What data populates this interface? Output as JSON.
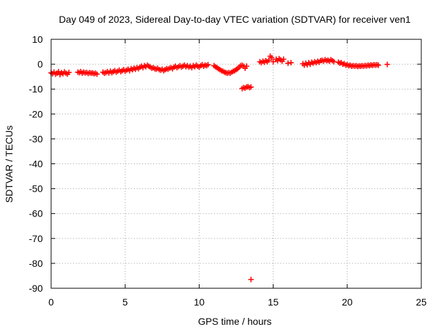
{
  "chart_data": {
    "type": "scatter",
    "title": "Day 049 of 2023, Sidereal Day-to-day VTEC variation (SDTVAR) for receiver ven1",
    "xlabel": "GPS time / hours",
    "ylabel": "SDTVAR / TECUs",
    "xlim": [
      0,
      25
    ],
    "ylim": [
      -90,
      10
    ],
    "xticks": [
      "0",
      "5",
      "10",
      "15",
      "20",
      "25"
    ],
    "yticks": [
      "10",
      "0",
      "-10",
      "-20",
      "-30",
      "-40",
      "-50",
      "-60",
      "-70",
      "-80",
      "-90"
    ],
    "grid": true,
    "marker": "plus",
    "color": "#ff0000",
    "series": [
      {
        "points": [
          [
            0.0,
            -3.5
          ],
          [
            0.1,
            -3.8
          ],
          [
            0.2,
            -3.2
          ],
          [
            0.3,
            -4.0
          ],
          [
            0.4,
            -3.6
          ],
          [
            0.5,
            -3.0
          ],
          [
            0.6,
            -4.2
          ],
          [
            0.7,
            -3.4
          ],
          [
            0.8,
            -3.8
          ],
          [
            0.9,
            -3.1
          ],
          [
            1.0,
            -3.6
          ],
          [
            1.1,
            -4.0
          ],
          [
            1.2,
            -3.3
          ],
          [
            1.8,
            -3.2
          ],
          [
            1.9,
            -3.4
          ],
          [
            2.0,
            -3.0
          ],
          [
            2.1,
            -3.6
          ],
          [
            2.2,
            -3.2
          ],
          [
            2.3,
            -3.5
          ],
          [
            2.4,
            -3.3
          ],
          [
            2.5,
            -3.7
          ],
          [
            2.6,
            -3.4
          ],
          [
            2.7,
            -3.6
          ],
          [
            2.8,
            -3.5
          ],
          [
            2.9,
            -3.8
          ],
          [
            3.0,
            -3.6
          ],
          [
            3.1,
            -4.0
          ],
          [
            3.5,
            -3.2
          ],
          [
            3.6,
            -3.6
          ],
          [
            3.7,
            -3.4
          ],
          [
            3.8,
            -3.0
          ],
          [
            3.9,
            -3.5
          ],
          [
            4.0,
            -2.8
          ],
          [
            4.1,
            -3.4
          ],
          [
            4.2,
            -3.0
          ],
          [
            4.3,
            -2.6
          ],
          [
            4.4,
            -3.2
          ],
          [
            4.5,
            -2.8
          ],
          [
            4.6,
            -2.4
          ],
          [
            4.7,
            -3.0
          ],
          [
            4.8,
            -2.6
          ],
          [
            4.9,
            -2.2
          ],
          [
            5.0,
            -2.8
          ],
          [
            5.1,
            -2.4
          ],
          [
            5.2,
            -2.0
          ],
          [
            5.3,
            -2.6
          ],
          [
            5.4,
            -1.8
          ],
          [
            5.5,
            -2.2
          ],
          [
            5.6,
            -1.6
          ],
          [
            5.7,
            -2.0
          ],
          [
            5.8,
            -1.4
          ],
          [
            5.9,
            -1.8
          ],
          [
            6.0,
            -1.2
          ],
          [
            6.1,
            -0.8
          ],
          [
            6.2,
            -1.4
          ],
          [
            6.3,
            -0.6
          ],
          [
            6.4,
            -1.0
          ],
          [
            6.5,
            -0.4
          ],
          [
            6.6,
            -0.8
          ],
          [
            6.7,
            -1.2
          ],
          [
            6.8,
            -1.6
          ],
          [
            6.9,
            -1.4
          ],
          [
            7.0,
            -1.8
          ],
          [
            7.1,
            -2.0
          ],
          [
            7.2,
            -1.6
          ],
          [
            7.3,
            -2.2
          ],
          [
            7.4,
            -2.4
          ],
          [
            7.5,
            -2.0
          ],
          [
            7.6,
            -2.6
          ],
          [
            7.7,
            -2.2
          ],
          [
            7.8,
            -1.8
          ],
          [
            7.9,
            -2.0
          ],
          [
            8.0,
            -1.6
          ],
          [
            8.1,
            -1.4
          ],
          [
            8.2,
            -1.8
          ],
          [
            8.3,
            -1.2
          ],
          [
            8.4,
            -0.8
          ],
          [
            8.5,
            -1.4
          ],
          [
            8.6,
            -1.0
          ],
          [
            8.7,
            -0.6
          ],
          [
            8.8,
            -1.2
          ],
          [
            8.9,
            -0.8
          ],
          [
            9.0,
            -0.4
          ],
          [
            9.1,
            -1.0
          ],
          [
            9.2,
            -0.6
          ],
          [
            9.3,
            -1.2
          ],
          [
            9.4,
            -0.8
          ],
          [
            9.5,
            -1.4
          ],
          [
            9.6,
            -0.6
          ],
          [
            9.7,
            -1.0
          ],
          [
            9.8,
            -0.4
          ],
          [
            9.9,
            -0.8
          ],
          [
            10.0,
            -1.2
          ],
          [
            10.1,
            -0.6
          ],
          [
            10.2,
            -0.2
          ],
          [
            10.3,
            -0.8
          ],
          [
            10.4,
            -0.4
          ],
          [
            10.5,
            -0.6
          ],
          [
            10.6,
            -0.2
          ],
          [
            11.0,
            -0.6
          ],
          [
            11.1,
            -1.0
          ],
          [
            11.2,
            -1.4
          ],
          [
            11.3,
            -1.8
          ],
          [
            11.4,
            -2.2
          ],
          [
            11.5,
            -2.6
          ],
          [
            11.6,
            -2.8
          ],
          [
            11.7,
            -3.2
          ],
          [
            11.8,
            -3.4
          ],
          [
            11.9,
            -3.6
          ],
          [
            12.0,
            -3.4
          ],
          [
            12.1,
            -3.6
          ],
          [
            12.2,
            -3.2
          ],
          [
            12.3,
            -2.8
          ],
          [
            12.4,
            -2.6
          ],
          [
            12.5,
            -2.2
          ],
          [
            12.6,
            -1.8
          ],
          [
            12.7,
            -1.2
          ],
          [
            12.8,
            -0.6
          ],
          [
            12.9,
            -0.4
          ],
          [
            13.0,
            -0.8
          ],
          [
            13.1,
            -1.6
          ],
          [
            13.2,
            -0.8
          ],
          [
            12.9,
            -9.8
          ],
          [
            13.0,
            -9.4
          ],
          [
            13.1,
            -9.6
          ],
          [
            13.2,
            -9.2
          ],
          [
            13.3,
            -9.0
          ],
          [
            13.4,
            -9.4
          ],
          [
            13.5,
            -9.2
          ],
          [
            13.5,
            -86.5
          ],
          [
            14.1,
            1.0
          ],
          [
            14.2,
            0.6
          ],
          [
            14.3,
            1.2
          ],
          [
            14.4,
            0.8
          ],
          [
            14.5,
            1.4
          ],
          [
            14.6,
            1.0
          ],
          [
            14.7,
            1.6
          ],
          [
            14.8,
            3.2
          ],
          [
            14.9,
            2.6
          ],
          [
            15.0,
            1.0
          ],
          [
            15.2,
            2.0
          ],
          [
            15.3,
            1.4
          ],
          [
            15.4,
            2.2
          ],
          [
            15.5,
            1.8
          ],
          [
            15.6,
            1.2
          ],
          [
            15.7,
            2.0
          ],
          [
            16.0,
            0.4
          ],
          [
            16.2,
            0.6
          ],
          [
            17.0,
            0.2
          ],
          [
            17.1,
            -0.4
          ],
          [
            17.2,
            0.4
          ],
          [
            17.3,
            -0.2
          ],
          [
            17.4,
            0.6
          ],
          [
            17.5,
            0.0
          ],
          [
            17.6,
            0.8
          ],
          [
            17.7,
            0.4
          ],
          [
            17.8,
            1.0
          ],
          [
            17.9,
            0.6
          ],
          [
            18.0,
            1.2
          ],
          [
            18.1,
            0.8
          ],
          [
            18.2,
            1.4
          ],
          [
            18.3,
            1.6
          ],
          [
            18.4,
            1.2
          ],
          [
            18.5,
            1.8
          ],
          [
            18.6,
            1.4
          ],
          [
            18.7,
            1.6
          ],
          [
            18.8,
            1.2
          ],
          [
            18.9,
            1.8
          ],
          [
            19.0,
            1.4
          ],
          [
            19.1,
            1.0
          ],
          [
            19.4,
            0.8
          ],
          [
            19.5,
            0.4
          ],
          [
            19.6,
            0.6
          ],
          [
            19.7,
            0.0
          ],
          [
            19.8,
            0.2
          ],
          [
            19.9,
            -0.4
          ],
          [
            20.0,
            -0.2
          ],
          [
            20.1,
            -0.6
          ],
          [
            20.2,
            -0.4
          ],
          [
            20.3,
            -0.8
          ],
          [
            20.4,
            -0.6
          ],
          [
            20.5,
            -0.8
          ],
          [
            20.6,
            -0.6
          ],
          [
            20.7,
            -0.9
          ],
          [
            20.8,
            -0.7
          ],
          [
            20.9,
            -0.8
          ],
          [
            21.0,
            -0.6
          ],
          [
            21.1,
            -0.8
          ],
          [
            21.2,
            -0.5
          ],
          [
            21.3,
            -0.7
          ],
          [
            21.4,
            -0.4
          ],
          [
            21.5,
            -0.6
          ],
          [
            21.6,
            -0.3
          ],
          [
            21.7,
            -0.5
          ],
          [
            21.8,
            -0.2
          ],
          [
            21.9,
            -0.4
          ],
          [
            22.0,
            -0.2
          ],
          [
            22.1,
            -0.4
          ],
          [
            22.7,
            -0.1
          ]
        ]
      }
    ]
  }
}
